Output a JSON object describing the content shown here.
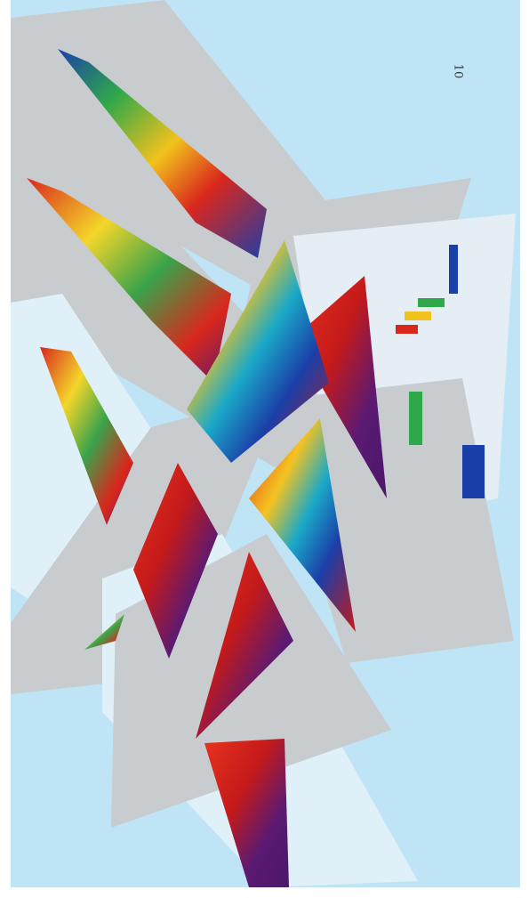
{
  "page_number": "10"
}
